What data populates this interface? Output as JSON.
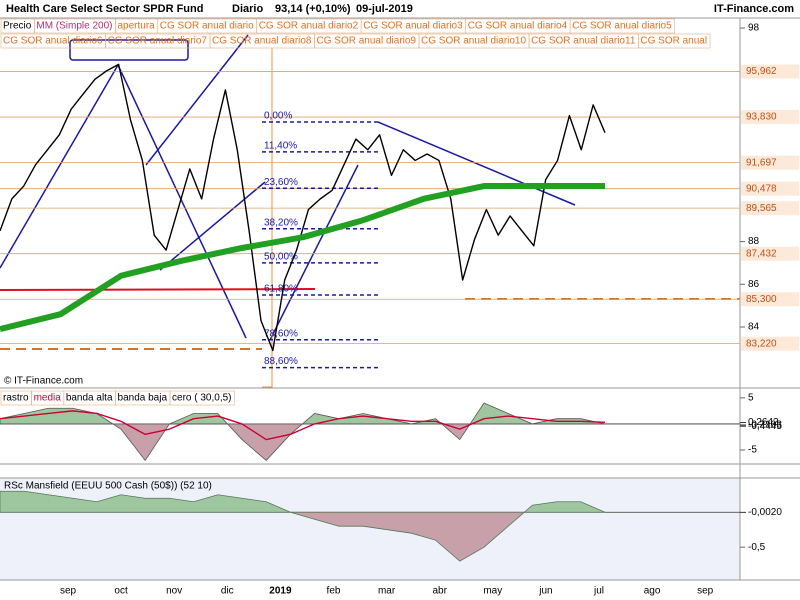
{
  "header": {
    "title": "Health Care Select Sector SPDR Fund",
    "period": "Diario",
    "quote": "93,14 (+0,10%)",
    "date": "09-jul-2019",
    "source": "IT-Finance.com"
  },
  "chart_data": [
    {
      "type": "line",
      "watermark": "© IT-Finance.com",
      "series": [
        {
          "name": "Precio",
          "color": "#000000",
          "values": [
            88.5,
            90.0,
            90.6,
            91.6,
            92.3,
            93.0,
            94.2,
            94.9,
            95.6,
            96.0,
            96.3,
            93.7,
            91.8,
            88.3,
            87.6,
            89.5,
            91.4,
            90.0,
            92.8,
            95.1,
            92.3,
            88.5,
            84.3,
            82.9,
            86.2,
            87.6,
            89.5,
            90.0,
            90.4,
            91.6,
            92.8,
            92.3,
            93.0,
            91.1,
            92.3,
            91.8,
            92.1,
            91.8,
            90.0,
            86.2,
            88.1,
            89.5,
            88.3,
            89.2,
            88.5,
            87.8,
            90.9,
            91.8,
            93.9,
            92.3,
            94.4,
            93.1
          ]
        },
        {
          "name": "MM (Simple 200)",
          "color": "#22a022",
          "values": [
            83.9,
            84.6,
            86.4,
            87.1,
            87.7,
            88.2,
            89.0,
            90.0,
            90.6,
            90.6,
            90.6
          ]
        }
      ],
      "legend_extra": [
        "apertura",
        "CG SOR anual diario",
        "CG SOR anual diario2",
        "CG SOR anual diario3",
        "CG SOR anual diario4",
        "CG SOR anual diario5",
        "CG SOR anual diario6",
        "CG SOR anual diario7",
        "CG SOR anual diario8",
        "CG SOR anual diario9",
        "CG SOR anual diario10",
        "CG SOR anual diario11",
        "CG SOR anual"
      ],
      "ylim": [
        81.19,
        98.47
      ],
      "yticks": [
        84,
        86,
        88,
        98
      ],
      "levels": [
        {
          "value": 95.962,
          "label": "95,962"
        },
        {
          "value": 93.83,
          "label": "93,830"
        },
        {
          "value": 91.697,
          "label": "91,697"
        },
        {
          "value": 90.478,
          "label": "90,478"
        },
        {
          "value": 89.565,
          "label": "89,565"
        },
        {
          "value": 87.432,
          "label": "87,432"
        },
        {
          "value": 85.3,
          "label": "85,300"
        },
        {
          "value": 83.22,
          "label": "83,220"
        }
      ],
      "fib_levels": [
        {
          "value": 93.6,
          "label": "0,00%"
        },
        {
          "value": 92.2,
          "label": "11,40%"
        },
        {
          "value": 90.5,
          "label": "23,60%"
        },
        {
          "value": 88.6,
          "label": "38,20%"
        },
        {
          "value": 87.0,
          "label": "50,00%"
        },
        {
          "value": 85.5,
          "label": "61,80%"
        },
        {
          "value": 83.4,
          "label": "78,60%"
        },
        {
          "value": 82.1,
          "label": "88,60%"
        }
      ]
    },
    {
      "type": "area",
      "series": [
        {
          "name": "rastro",
          "color": "#555555",
          "values": [
            1,
            2,
            3,
            3,
            2,
            -1,
            -7,
            0,
            2,
            2,
            -3,
            -7,
            -2,
            2,
            1,
            2,
            1,
            0,
            1,
            -3,
            4,
            2,
            0,
            1,
            1,
            0
          ]
        },
        {
          "name": "media",
          "color": "#cc0033",
          "values": [
            1,
            1.5,
            2,
            2.5,
            2,
            0.5,
            -2,
            -1,
            1,
            1.5,
            0,
            -3,
            -2,
            0,
            1,
            1.5,
            1,
            0.5,
            0.5,
            -1,
            1,
            1.5,
            1,
            0.5,
            0.5,
            0.3
          ]
        }
      ],
      "legend_extra": [
        "banda alta",
        "banda baja",
        "cero ( 30,0,5)"
      ],
      "ylim": [
        -7.3,
        6.5
      ],
      "yticks": [
        5,
        -5
      ],
      "markers": [
        {
          "value": 0.2642,
          "label": "0,2642"
        },
        {
          "value": -0.2103,
          "label": "-0,2103"
        },
        {
          "value": -0.4445,
          "label": "-0,4445"
        }
      ]
    },
    {
      "type": "area",
      "title": "RSc Mansfield (EEUU 500 Cash (50$)) (52 10)",
      "series": [
        {
          "name": "RSc Mansfield",
          "color": "#557755",
          "values": [
            0.3,
            0.3,
            0.25,
            0.2,
            0.15,
            0.25,
            0.2,
            0.2,
            0.15,
            0.25,
            0.2,
            0.15,
            0,
            -0.1,
            -0.2,
            -0.2,
            -0.25,
            -0.3,
            -0.4,
            -0.7,
            -0.5,
            -0.2,
            0.1,
            0.15,
            0.15,
            0
          ]
        }
      ],
      "ylim": [
        -0.97,
        0.49
      ],
      "yticks": [
        {
          "value": -0.5,
          "label": "-0,5"
        }
      ],
      "markers": [
        {
          "value": -0.002,
          "label": "-0,0020"
        }
      ],
      "x_tick_labels": [
        "sep",
        "oct",
        "nov",
        "dic",
        "2019",
        "feb",
        "mar",
        "abr",
        "may",
        "jun",
        "jul",
        "ago",
        "sep"
      ]
    }
  ]
}
